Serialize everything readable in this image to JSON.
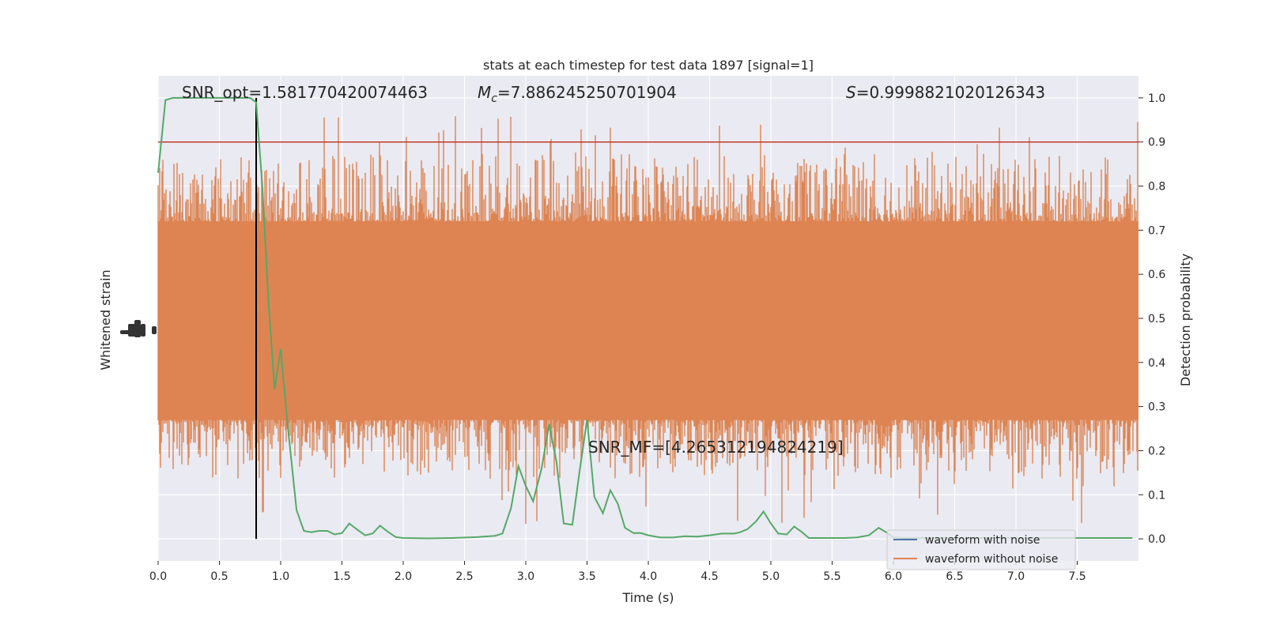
{
  "chart_data": {
    "type": "line",
    "title": "stats at each timestep for test data 1897 [signal=1]",
    "xlabel": "Time (s)",
    "ylabel_left": "Whitened strain",
    "ylabel_right": "Detection probability",
    "xlim": [
      0.0,
      8.0
    ],
    "ylim_right": [
      -0.05,
      1.05
    ],
    "x_ticks": [
      0.0,
      0.5,
      1.0,
      1.5,
      2.0,
      2.5,
      3.0,
      3.5,
      4.0,
      4.5,
      5.0,
      5.5,
      6.0,
      6.5,
      7.0,
      7.5
    ],
    "x_tick_labels": [
      "0.0",
      "0.5",
      "1.0",
      "1.5",
      "2.0",
      "2.5",
      "3.0",
      "3.5",
      "4.0",
      "4.5",
      "5.0",
      "5.5",
      "6.0",
      "6.5",
      "7.0",
      "7.5"
    ],
    "y_right_ticks": [
      0.0,
      0.1,
      0.2,
      0.3,
      0.4,
      0.5,
      0.6,
      0.7,
      0.8,
      0.9,
      1.0
    ],
    "y_right_tick_labels": [
      "0.0",
      "0.1",
      "0.2",
      "0.3",
      "0.4",
      "0.5",
      "0.6",
      "0.7",
      "0.8",
      "0.9",
      "1.0"
    ],
    "grid": true,
    "legend_position": "lower-right",
    "annotations": {
      "snr_opt": "SNR_opt=1.581770420074463",
      "mc_symbol": "M",
      "mc_subscript": "c",
      "mc_value": "=7.886245250701904",
      "s_symbol": "S",
      "s_value": "=0.9998821020126343",
      "snr_mf": "SNR_MF=[4.265312194824219]"
    },
    "threshold": {
      "y": 0.9,
      "color": "#c0392b"
    },
    "marker_line_x": 0.8,
    "series": [
      {
        "name": "waveform with noise",
        "color": "#4c72b0"
      },
      {
        "name": "waveform without noise",
        "color": "#dd8452"
      },
      {
        "color": "#55a868",
        "x": [
          0.0,
          0.06,
          0.12,
          0.2,
          0.3,
          0.4,
          0.5,
          0.6,
          0.7,
          0.75,
          0.8,
          0.85,
          0.9,
          0.95,
          1.0,
          1.06,
          1.13,
          1.19,
          1.25,
          1.31,
          1.38,
          1.44,
          1.5,
          1.56,
          1.63,
          1.69,
          1.75,
          1.81,
          1.88,
          1.94,
          2.0,
          2.2,
          2.4,
          2.6,
          2.75,
          2.81,
          2.88,
          2.94,
          3.0,
          3.06,
          3.13,
          3.19,
          3.25,
          3.31,
          3.38,
          3.44,
          3.5,
          3.56,
          3.63,
          3.69,
          3.75,
          3.81,
          3.88,
          3.94,
          4.0,
          4.1,
          4.2,
          4.3,
          4.4,
          4.5,
          4.6,
          4.7,
          4.75,
          4.81,
          4.88,
          4.94,
          5.0,
          5.06,
          5.13,
          5.19,
          5.25,
          5.31,
          5.4,
          5.5,
          5.6,
          5.7,
          5.8,
          5.88,
          5.94,
          6.0,
          6.1,
          6.2,
          6.3,
          6.4,
          6.5,
          6.6,
          6.7,
          6.8,
          6.9,
          7.0,
          7.2,
          7.4,
          7.6,
          7.8,
          7.95
        ],
        "values": [
          0.83,
          0.995,
          1.0,
          1.0,
          1.0,
          1.0,
          1.0,
          1.0,
          1.0,
          1.0,
          0.99,
          0.8,
          0.54,
          0.34,
          0.43,
          0.25,
          0.065,
          0.018,
          0.015,
          0.018,
          0.018,
          0.01,
          0.013,
          0.035,
          0.02,
          0.008,
          0.012,
          0.03,
          0.015,
          0.004,
          0.002,
          0.001,
          0.002,
          0.004,
          0.007,
          0.012,
          0.07,
          0.165,
          0.12,
          0.085,
          0.16,
          0.26,
          0.175,
          0.035,
          0.032,
          0.155,
          0.27,
          0.095,
          0.058,
          0.11,
          0.08,
          0.025,
          0.013,
          0.013,
          0.008,
          0.003,
          0.003,
          0.006,
          0.005,
          0.008,
          0.012,
          0.012,
          0.015,
          0.022,
          0.04,
          0.062,
          0.035,
          0.012,
          0.01,
          0.028,
          0.016,
          0.002,
          0.002,
          0.002,
          0.002,
          0.003,
          0.008,
          0.025,
          0.015,
          0.003,
          0.002,
          0.002,
          0.002,
          0.002,
          0.002,
          0.002,
          0.002,
          0.002,
          0.002,
          0.002,
          0.002,
          0.002,
          0.002,
          0.002,
          0.002
        ]
      }
    ]
  }
}
